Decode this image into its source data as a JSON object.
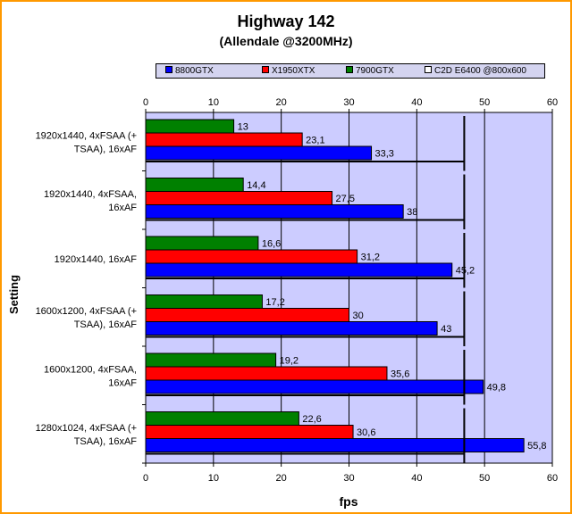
{
  "chart_data": {
    "type": "bar",
    "orientation": "horizontal",
    "title": "Highway 142",
    "subtitle": "(Allendale @3200MHz)",
    "xlabel": "fps",
    "ylabel": "Setting",
    "xlim": [
      0,
      60
    ],
    "xticks": [
      "0",
      "10",
      "20",
      "30",
      "40",
      "50",
      "60"
    ],
    "categories": [
      "1920x1440, 4xFSAA (+ TSAA), 16xAF",
      "1920x1440, 4xFSAA, 16xAF",
      "1920x1440, 16xAF",
      "1600x1200, 4xFSAA (+ TSAA), 16xAF",
      "1600x1200, 4xFSAA, 16xAF",
      "1280x1024, 4xFSAA (+ TSAA), 16xAF"
    ],
    "series": [
      {
        "name": "8800GTX",
        "color": "#0000ff",
        "values": [
          33.3,
          38,
          45.2,
          43,
          49.8,
          55.8
        ],
        "labels": [
          "33,3",
          "38",
          "45,2",
          "43",
          "49,8",
          "55,8"
        ]
      },
      {
        "name": "X1950XTX",
        "color": "#ff0000",
        "values": [
          23.1,
          27.5,
          31.2,
          30,
          35.6,
          30.6
        ],
        "labels": [
          "23,1",
          "27,5",
          "31,2",
          "30",
          "35,6",
          "30,6"
        ]
      },
      {
        "name": "7900GTX",
        "color": "#008000",
        "values": [
          13,
          14.4,
          16.6,
          17.2,
          19.2,
          22.6
        ],
        "labels": [
          "13",
          "14,4",
          "16,6",
          "17,2",
          "19,2",
          "22,6"
        ]
      },
      {
        "name": "C2D E6400 @800x600",
        "color": "#ffffff",
        "values": [
          47,
          47,
          47,
          47,
          47,
          47
        ],
        "labels": []
      }
    ],
    "legend_position": "top",
    "grid": true,
    "plot_background": "#ccccff"
  }
}
